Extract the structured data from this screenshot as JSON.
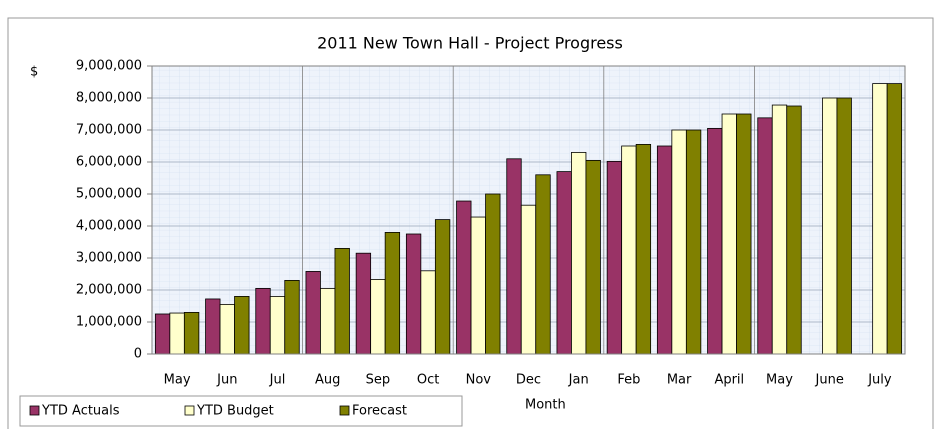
{
  "chart_data": {
    "type": "bar",
    "title": "2011 New Town Hall - Project Progress",
    "y_label": "$",
    "x_label": "Month",
    "categories": [
      "May",
      "Jun",
      "Jul",
      "Aug",
      "Sep",
      "Oct",
      "Nov",
      "Dec",
      "Jan",
      "Feb",
      "Mar",
      "April",
      "May",
      "June",
      "July"
    ],
    "series": [
      {
        "name": "YTD Actuals",
        "color": "#993366",
        "values": [
          1250000,
          1720000,
          2050000,
          2580000,
          3150000,
          3750000,
          4780000,
          6100000,
          5700000,
          6020000,
          6500000,
          7050000,
          7380000,
          null,
          null
        ]
      },
      {
        "name": "YTD Budget",
        "color": "#ffffcc",
        "values": [
          1280000,
          1550000,
          1800000,
          2050000,
          2330000,
          2600000,
          4280000,
          4650000,
          6300000,
          6500000,
          7000000,
          7500000,
          7780000,
          8000000,
          8450000
        ]
      },
      {
        "name": "Forecast",
        "color": "#808000",
        "values": [
          1300000,
          1800000,
          2300000,
          3300000,
          3800000,
          4200000,
          5000000,
          5600000,
          6050000,
          6550000,
          7000000,
          7500000,
          7750000,
          8000000,
          8450000
        ]
      }
    ],
    "ylim": [
      0,
      9000000
    ],
    "yticks": [
      0,
      {
        "value": 1000000,
        "label": "1,000,000"
      },
      {
        "value": 2000000,
        "label": "2,000,000"
      },
      {
        "value": 3000000,
        "label": "3,000,000"
      },
      {
        "value": 4000000,
        "label": "4,000,000"
      },
      {
        "value": 5000000,
        "label": "5,000,000"
      },
      {
        "value": 6000000,
        "label": "6,000,000"
      },
      {
        "value": 7000000,
        "label": "7,000,000"
      },
      {
        "value": 8000000,
        "label": "8,000,000"
      },
      {
        "value": 9000000,
        "label": "9,000,000"
      }
    ],
    "grid": true,
    "legend": "bottom-left"
  }
}
